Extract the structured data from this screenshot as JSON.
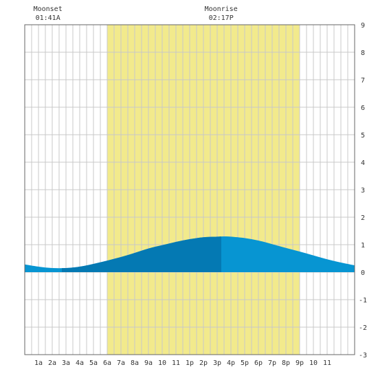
{
  "chart_data": {
    "type": "area",
    "x_tick_labels": [
      "1a",
      "2a",
      "3a",
      "4a",
      "5a",
      "6a",
      "7a",
      "8a",
      "9a",
      "10",
      "11",
      "1p",
      "2p",
      "3p",
      "4p",
      "5p",
      "6p",
      "7p",
      "8p",
      "9p",
      "10",
      "11"
    ],
    "y_ticks": [
      "9",
      "8",
      "7",
      "6",
      "5",
      "4",
      "3",
      "2",
      "1",
      "0",
      "-1",
      "-2",
      "-3"
    ],
    "ylim": [
      -3,
      9
    ],
    "xlim_hours": [
      0,
      24
    ],
    "grid": true,
    "daylight_hours": [
      6.0,
      20.0
    ],
    "moon_events": [
      {
        "label": "Moonset",
        "time": "01:41A",
        "hour": 1.683
      },
      {
        "label": "Moonrise",
        "time": "02:17P",
        "hour": 14.283
      }
    ],
    "tide_series": {
      "hours": [
        0,
        1,
        2,
        3,
        4,
        5,
        6,
        7,
        8,
        9,
        10,
        11,
        12,
        13,
        14,
        14.5,
        15,
        16,
        17,
        18,
        19,
        20,
        21,
        22,
        23,
        24
      ],
      "values": [
        0.28,
        0.2,
        0.15,
        0.15,
        0.2,
        0.3,
        0.42,
        0.55,
        0.7,
        0.86,
        0.98,
        1.1,
        1.2,
        1.27,
        1.29,
        1.3,
        1.29,
        1.24,
        1.15,
        1.02,
        0.88,
        0.75,
        0.61,
        0.47,
        0.35,
        0.25
      ]
    },
    "darker_fill_range_hours": [
      2.7,
      14.3
    ],
    "colors": {
      "daylight": "#f2ea8c",
      "grid": "#c8c8c8",
      "tide": "#0795d2",
      "tide_dark": "#0479b3",
      "text": "#333333",
      "axis": "#666666"
    }
  }
}
